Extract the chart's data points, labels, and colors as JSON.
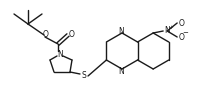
{
  "bg_color": "#ffffff",
  "line_color": "#1a1a1a",
  "lw": 1.0,
  "fs": 5.5,
  "figsize": [
    2.2,
    0.98
  ],
  "dpi": 100,
  "xlim": [
    0,
    220
  ],
  "ylim": [
    0,
    98
  ]
}
